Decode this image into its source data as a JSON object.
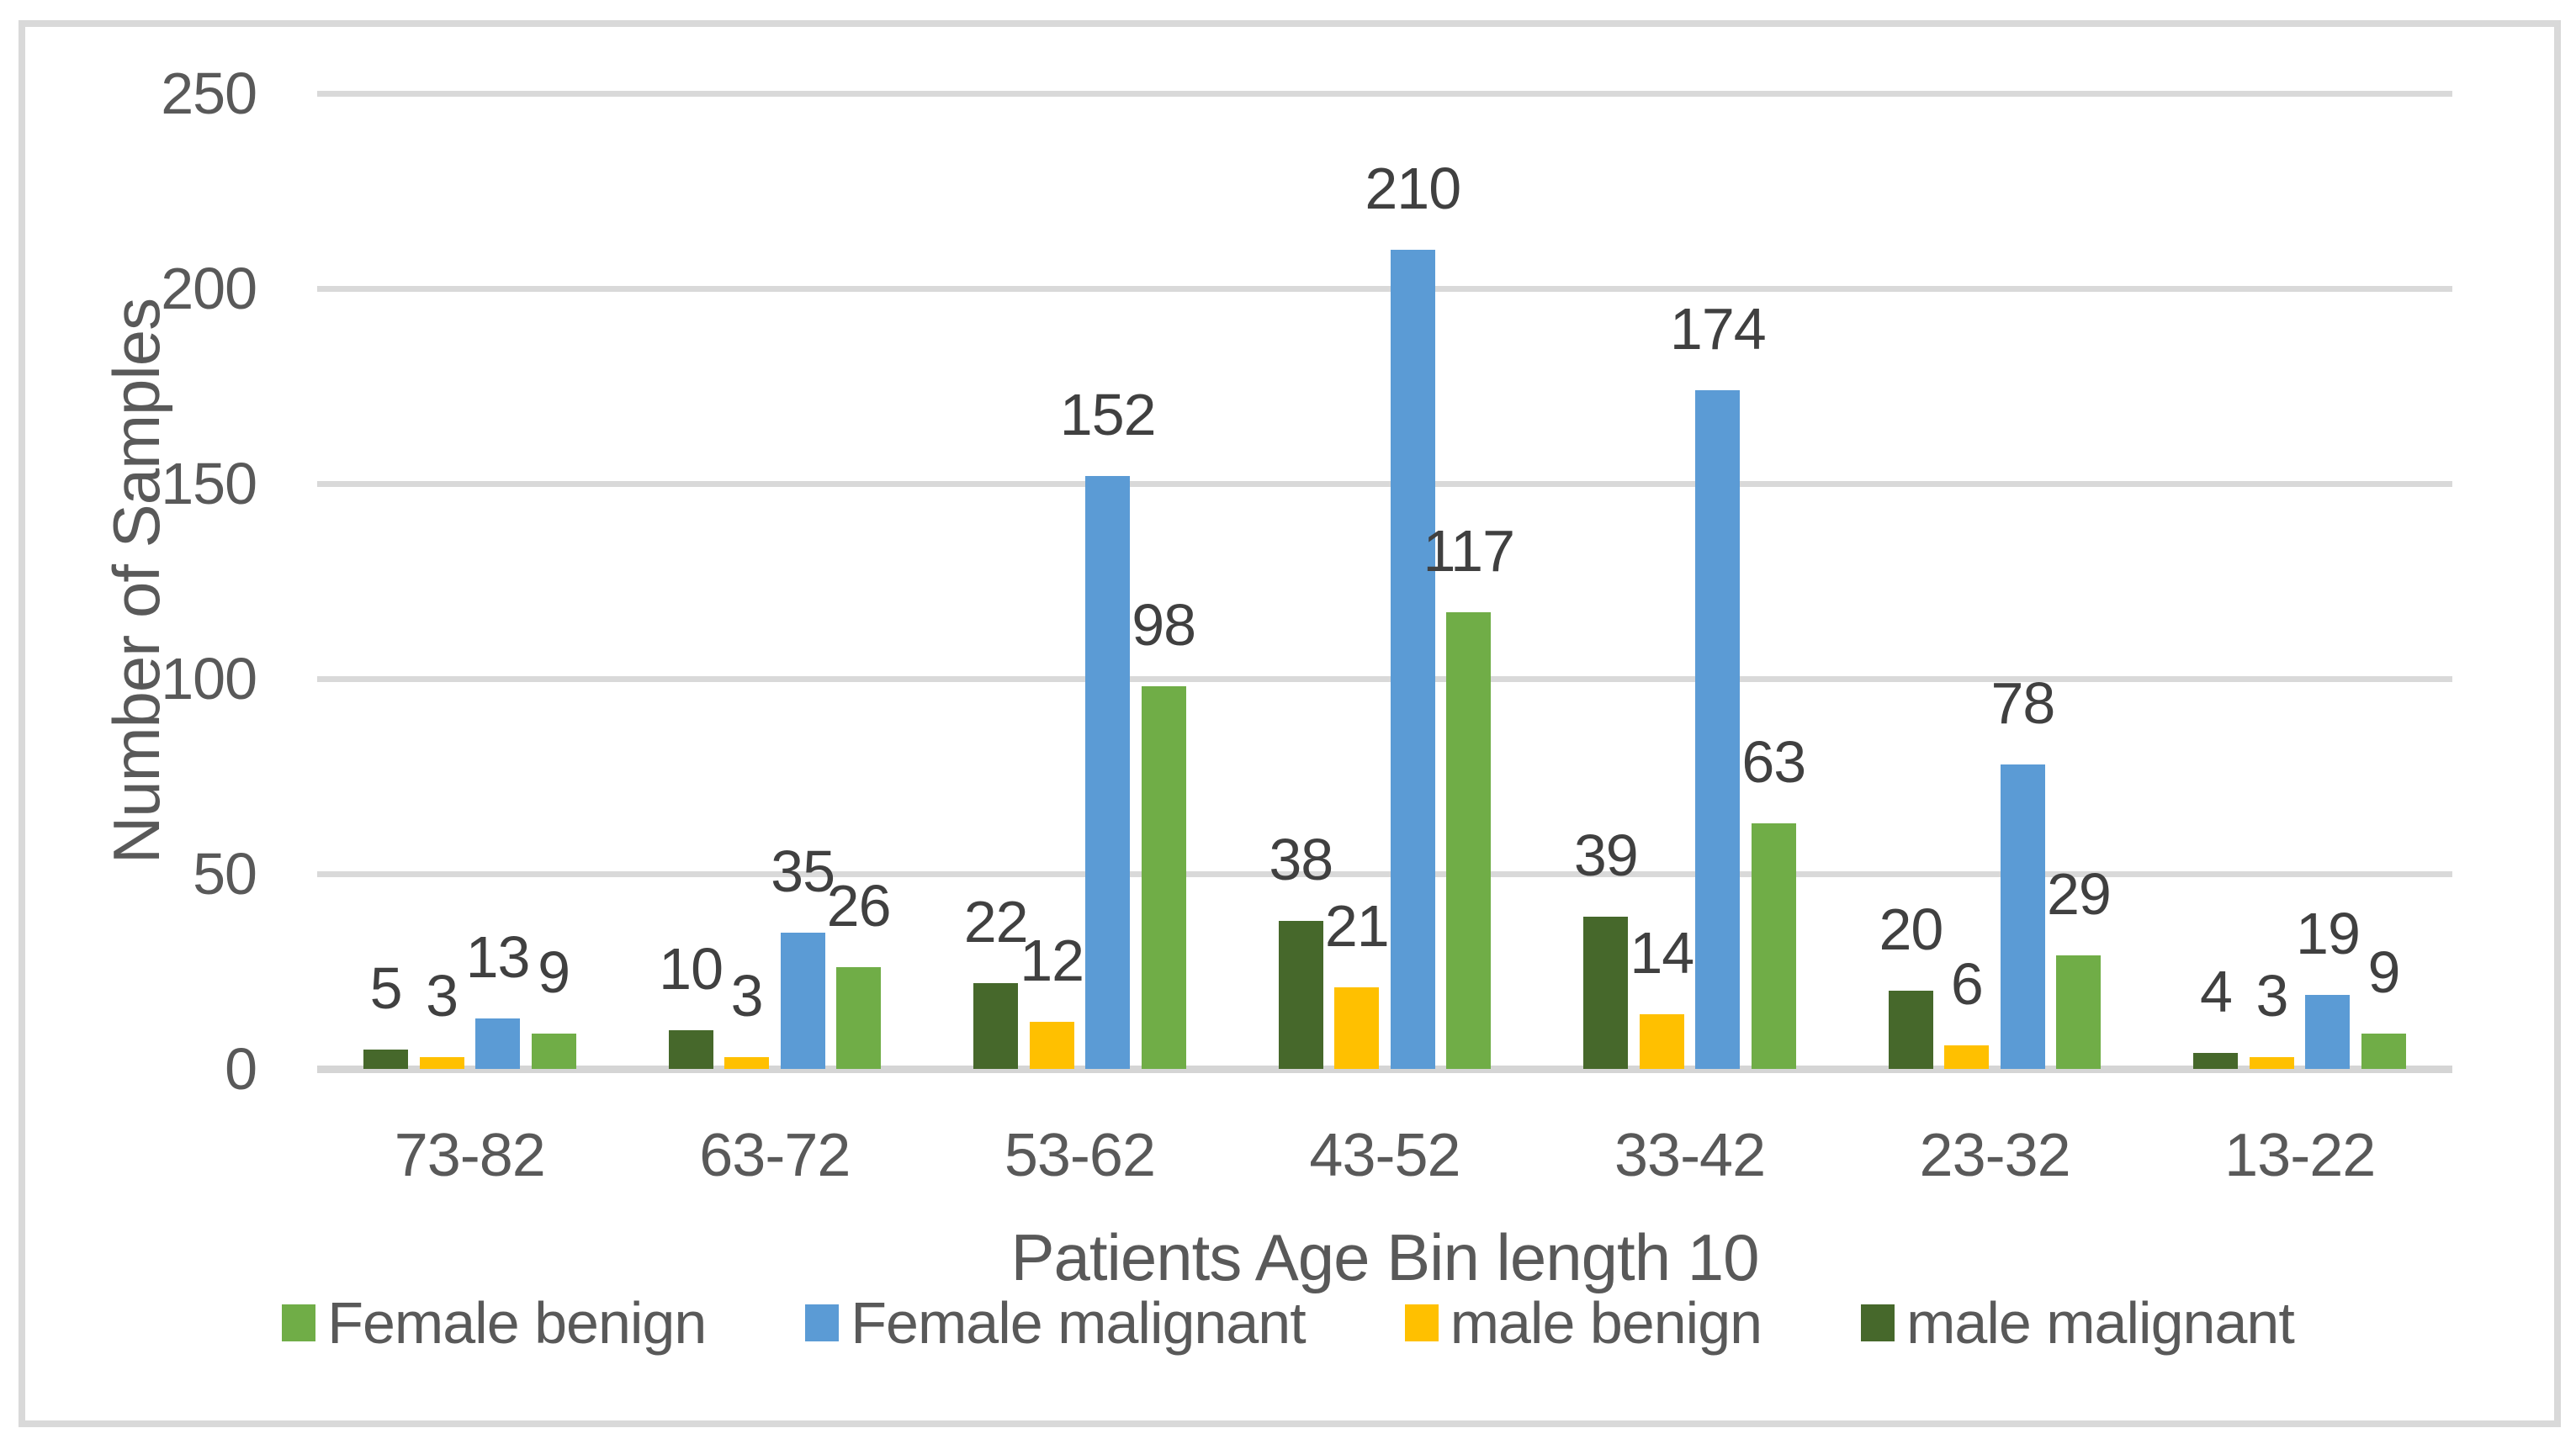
{
  "chart_data": {
    "type": "bar",
    "title": "",
    "xlabel": "Patients Age Bin length 10",
    "ylabel": "Number of Samples",
    "categories": [
      "73-82",
      "63-72",
      "53-62",
      "43-52",
      "33-42",
      "23-32",
      "13-22"
    ],
    "series": [
      {
        "name": "male malignant",
        "color": "#46682B",
        "values": [
          5,
          10,
          22,
          38,
          39,
          20,
          4
        ]
      },
      {
        "name": "male benign",
        "color": "#FFC000",
        "values": [
          3,
          3,
          12,
          21,
          14,
          6,
          3
        ]
      },
      {
        "name": "Female malignant",
        "color": "#5B9BD5",
        "values": [
          13,
          35,
          152,
          210,
          174,
          78,
          19
        ]
      },
      {
        "name": "Female benign",
        "color": "#70AD47",
        "values": [
          9,
          26,
          98,
          117,
          63,
          29,
          9
        ]
      }
    ],
    "legend": [
      "Female benign",
      "Female malignant",
      "male benign",
      "male malignant"
    ],
    "y_axis": {
      "min": 0,
      "max": 250,
      "step": 50,
      "ticks": [
        "0",
        "50",
        "100",
        "150",
        "200",
        "250"
      ]
    },
    "grid": true,
    "legend_position": "bottom",
    "data_labels": true,
    "gridline_color": "#D9D9D9",
    "text_color": "#595959",
    "data_label_color": "#404040"
  }
}
